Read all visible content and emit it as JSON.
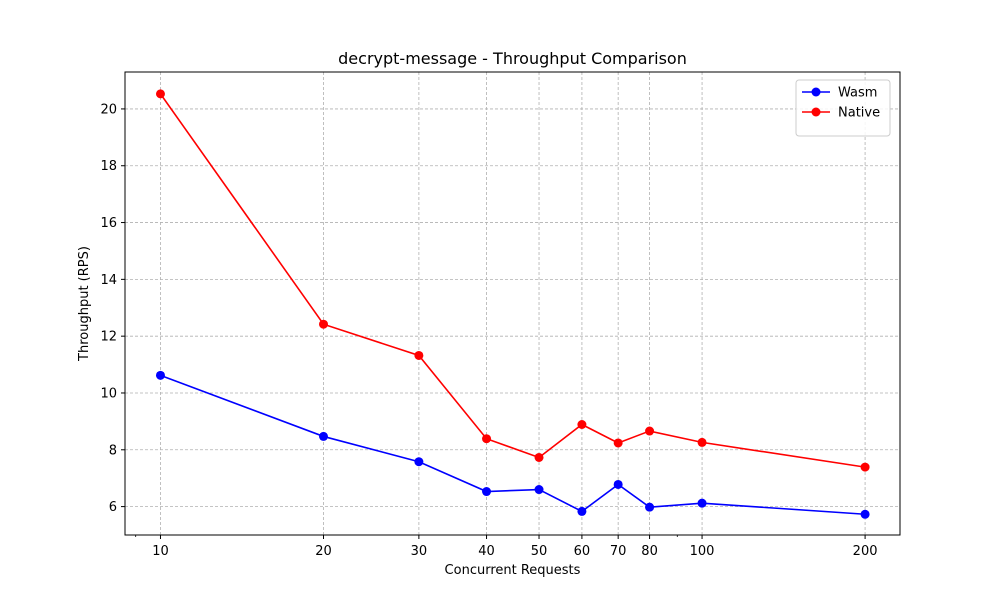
{
  "chart_data": {
    "type": "line",
    "title": "decrypt-message - Throughput Comparison",
    "xlabel": "Concurrent Requests",
    "ylabel": "Throughput (RPS)",
    "x_scale": "log",
    "x": [
      10,
      20,
      30,
      40,
      50,
      60,
      70,
      80,
      100,
      200
    ],
    "x_tick_labels": [
      "10",
      "20",
      "30",
      "40",
      "50",
      "60",
      "70",
      "80",
      "100",
      "200"
    ],
    "y_ticks": [
      6,
      8,
      10,
      12,
      14,
      16,
      18,
      20
    ],
    "xlim": [
      8.6,
      232
    ],
    "ylim": [
      5.0,
      21.3
    ],
    "grid": true,
    "legend_position": "top-right",
    "series": [
      {
        "name": "Wasm",
        "color": "#0000ff",
        "values": [
          10.62,
          8.47,
          7.58,
          6.53,
          6.6,
          5.83,
          6.78,
          5.98,
          6.12,
          5.73
        ]
      },
      {
        "name": "Native",
        "color": "#ff0000",
        "values": [
          20.53,
          12.42,
          11.32,
          8.39,
          7.73,
          8.89,
          8.24,
          8.66,
          8.26,
          7.39
        ]
      }
    ]
  }
}
